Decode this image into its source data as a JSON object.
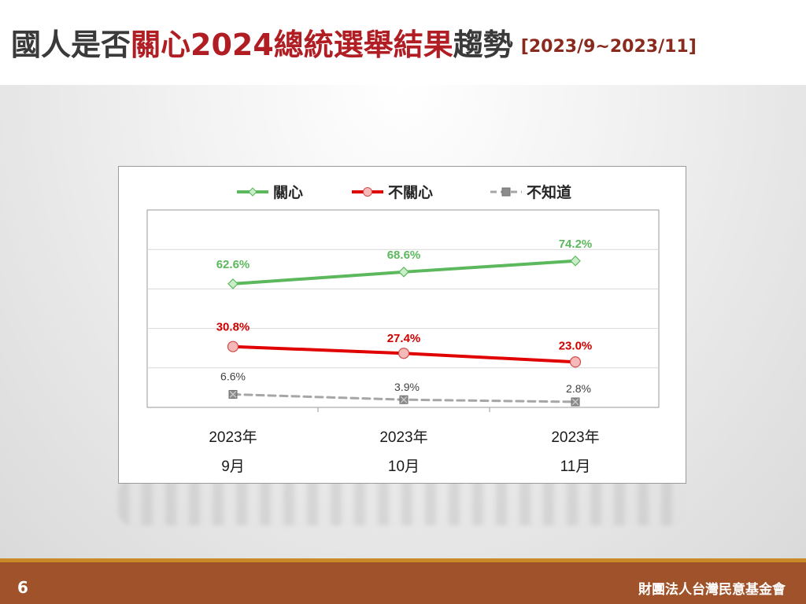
{
  "slide": {
    "title_prefix": "國人是否",
    "title_highlight": "關心2024總統選舉結果",
    "title_suffix": "趨勢",
    "title_range": "[2023/9~2023/11]",
    "page_number": "6",
    "organization": "財團法人台灣民意基金會"
  },
  "colors": {
    "care": "#5cb85c",
    "not_care": "#e00000",
    "unknown": "#a6a6a6",
    "footer": "#a0532a"
  },
  "chart_data": {
    "type": "line",
    "categories": [
      {
        "year": "2023年",
        "month": "9月"
      },
      {
        "year": "2023年",
        "month": "10月"
      },
      {
        "year": "2023年",
        "month": "11月"
      }
    ],
    "legend_position": "top",
    "grid": true,
    "ylim": [
      0,
      100
    ],
    "series": [
      {
        "name": "關心",
        "values": [
          62.6,
          68.6,
          74.2
        ],
        "labels": [
          "62.6%",
          "68.6%",
          "74.2%"
        ],
        "color": "#5cb85c",
        "marker": "diamond",
        "dash": "solid"
      },
      {
        "name": "不關心",
        "values": [
          30.8,
          27.4,
          23.0
        ],
        "labels": [
          "30.8%",
          "27.4%",
          "23.0%"
        ],
        "color": "#e00000",
        "marker": "circle",
        "dash": "solid"
      },
      {
        "name": "不知道",
        "values": [
          6.6,
          3.9,
          2.8
        ],
        "labels": [
          "6.6%",
          "3.9%",
          "2.8%"
        ],
        "color": "#a6a6a6",
        "marker": "square-x",
        "dash": "dashed"
      }
    ]
  }
}
